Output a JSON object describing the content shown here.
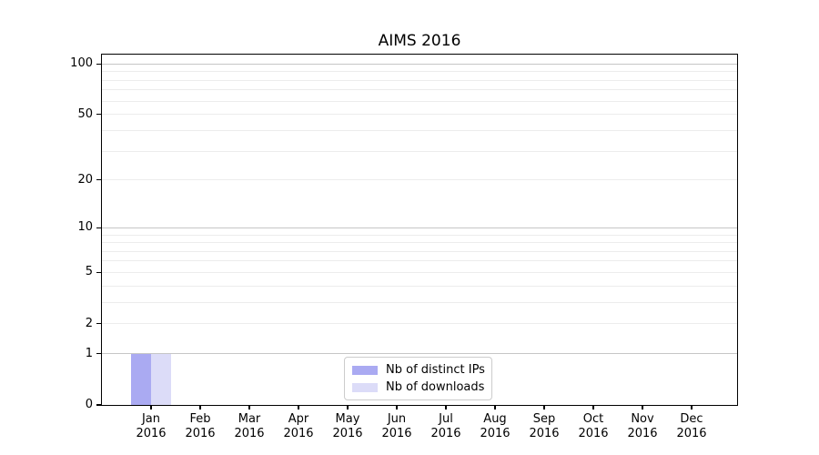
{
  "chart_data": {
    "type": "bar",
    "title": "AIMS 2016",
    "categories": [
      "Jan",
      "Feb",
      "Mar",
      "Apr",
      "May",
      "Jun",
      "Jul",
      "Aug",
      "Sep",
      "Oct",
      "Nov",
      "Dec"
    ],
    "category_year": "2016",
    "series": [
      {
        "name": "Nb of distinct IPs",
        "color": "#aaaaf2",
        "values": [
          1,
          0,
          0,
          0,
          0,
          0,
          0,
          0,
          0,
          0,
          0,
          0
        ]
      },
      {
        "name": "Nb of downloads",
        "color": "#dcdcf8",
        "values": [
          1,
          0,
          0,
          0,
          0,
          0,
          0,
          0,
          0,
          0,
          0,
          0
        ]
      }
    ],
    "y_axis": {
      "scale": "log10(value+1)",
      "ticks": [
        0,
        1,
        2,
        5,
        10,
        20,
        50,
        100
      ],
      "ylim": [
        0,
        113
      ],
      "major_gridlines": [
        1,
        10,
        100
      ],
      "minor_gridlines": [
        2,
        3,
        4,
        5,
        6,
        7,
        8,
        9,
        20,
        30,
        40,
        50,
        60,
        70,
        80,
        90
      ]
    },
    "legend": {
      "position": "lower center"
    },
    "style": {
      "background": "#ffffff",
      "major_grid_color": "#c6c6c6",
      "minor_grid_color": "#ececec",
      "axis_color": "#000000",
      "text_color": "#000000",
      "legend_border_color": "#cccccc"
    }
  }
}
